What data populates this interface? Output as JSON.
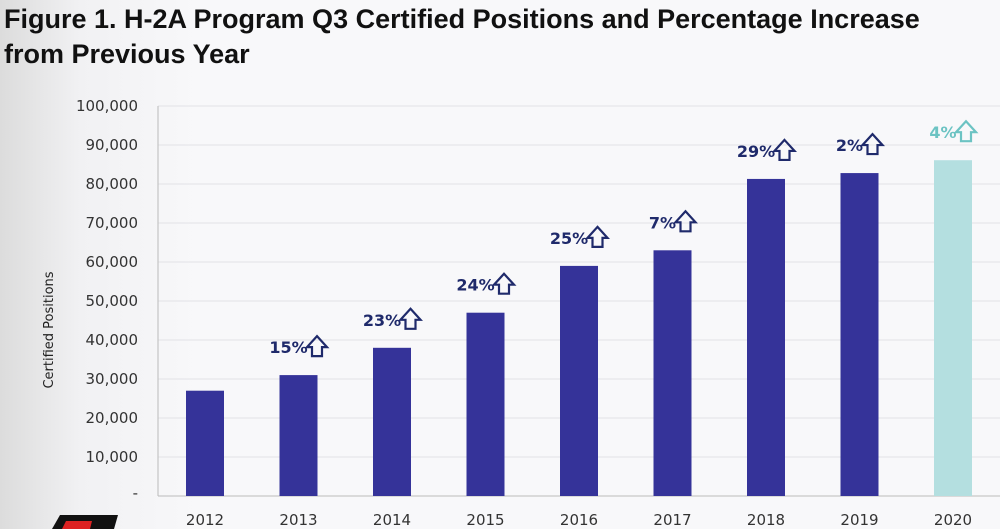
{
  "chart_data": {
    "type": "bar",
    "title_line1": "Figure 1. H-2A Program Q3 Certified Positions and Percentage Increase",
    "title_line2": "from Previous Year",
    "xlabel": "",
    "ylabel": "Certified Positions",
    "ylim": [
      0,
      100000
    ],
    "yticks": [
      0,
      10000,
      20000,
      30000,
      40000,
      50000,
      60000,
      70000,
      80000,
      90000,
      100000
    ],
    "ytick_labels": [
      "-",
      "10,000",
      "20,000",
      "30,000",
      "40,000",
      "50,000",
      "60,000",
      "70,000",
      "80,000",
      "90,000",
      "100,000"
    ],
    "grid": true,
    "categories": [
      "2012",
      "2013",
      "2014",
      "2015",
      "2016",
      "2017",
      "2018",
      "2019",
      "2020"
    ],
    "values": [
      27000,
      31000,
      38000,
      47000,
      59000,
      63000,
      81300,
      82800,
      86100
    ],
    "pct_labels": [
      "",
      "15%",
      "23%",
      "24%",
      "25%",
      "7%",
      "29%",
      "2%",
      "4%"
    ],
    "bar_colors": [
      "#353399",
      "#353399",
      "#353399",
      "#353399",
      "#353399",
      "#353399",
      "#353399",
      "#353399",
      "#b4dfe0"
    ],
    "label_colors": [
      "#1f2a6b",
      "#1f2a6b",
      "#1f2a6b",
      "#1f2a6b",
      "#1f2a6b",
      "#1f2a6b",
      "#1f2a6b",
      "#1f2a6b",
      "#6cc3c3"
    ],
    "arrow_icon": "up-arrow-outline-icon"
  }
}
